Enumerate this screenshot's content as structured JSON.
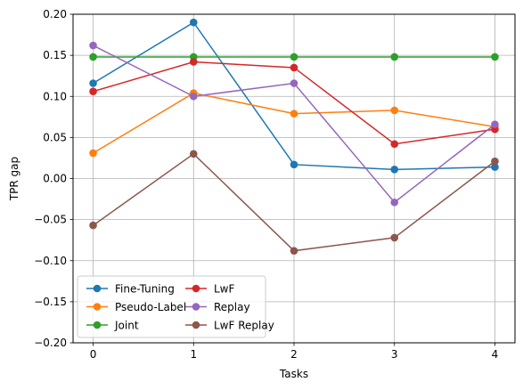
{
  "chart_data": {
    "type": "line",
    "xlabel": "Tasks",
    "ylabel": "TPR gap",
    "x": [
      0,
      1,
      2,
      3,
      4
    ],
    "xlim": [
      -0.2,
      4.2
    ],
    "ylim": [
      -0.2,
      0.2
    ],
    "xticks": [
      "0",
      "1",
      "2",
      "3",
      "4"
    ],
    "yticks": [
      "−0.20",
      "−0.15",
      "−0.10",
      "−0.05",
      "0.00",
      "0.05",
      "0.10",
      "0.15",
      "0.20"
    ],
    "grid": true,
    "legend_position": "lower-left",
    "legend_columns": 2,
    "marker": "circle",
    "series": [
      {
        "name": "Fine-Tuning",
        "color": "#1f77b4",
        "values": [
          0.116,
          0.19,
          0.017,
          0.011,
          0.014
        ]
      },
      {
        "name": "Pseudo-Label",
        "color": "#ff7f0e",
        "values": [
          0.031,
          0.104,
          0.079,
          0.083,
          0.063
        ]
      },
      {
        "name": "Joint",
        "color": "#2ca02c",
        "values": [
          0.148,
          0.148,
          0.148,
          0.148,
          0.148
        ]
      },
      {
        "name": "LwF",
        "color": "#d62728",
        "values": [
          0.106,
          0.142,
          0.135,
          0.042,
          0.06
        ]
      },
      {
        "name": "Replay",
        "color": "#9467bd",
        "values": [
          0.162,
          0.1,
          0.116,
          -0.029,
          0.066
        ]
      },
      {
        "name": "LwF Replay",
        "color": "#8c564b",
        "values": [
          -0.057,
          0.03,
          -0.088,
          -0.072,
          0.021
        ]
      }
    ]
  }
}
